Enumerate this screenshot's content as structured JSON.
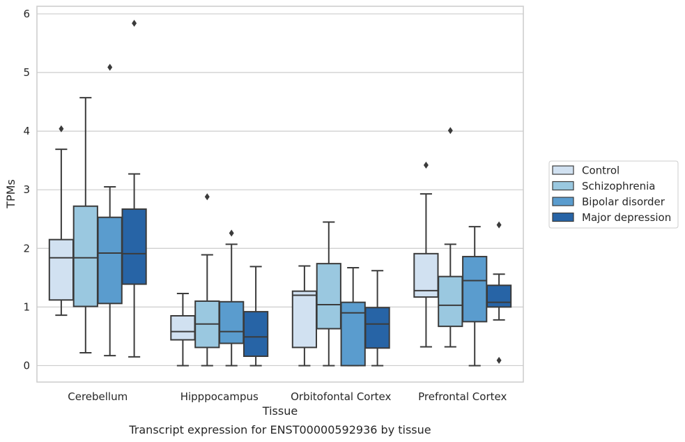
{
  "chart_data": {
    "type": "box",
    "xlabel": "Tissue",
    "ylabel": "TPMs",
    "caption": "Transcript expression for ENST00000592936 by tissue",
    "ylim": [
      -0.28,
      6.13
    ],
    "yticks": [
      0,
      1,
      2,
      3,
      4,
      5,
      6
    ],
    "grid": true,
    "legend_position": "right",
    "categories": [
      "Cerebellum",
      "Hipppocampus",
      "Orbitofontal Cortex",
      "Prefrontal Cortex"
    ],
    "series": [
      {
        "name": "Control",
        "color": "#d1e1f1",
        "boxes": [
          {
            "whislo": 0.86,
            "q1": 1.12,
            "med": 1.84,
            "q3": 2.15,
            "whishi": 3.69,
            "fliers": [
              4.04
            ]
          },
          {
            "whislo": 0.0,
            "q1": 0.44,
            "med": 0.58,
            "q3": 0.85,
            "whishi": 1.23,
            "fliers": []
          },
          {
            "whislo": 0.0,
            "q1": 0.31,
            "med": 1.2,
            "q3": 1.27,
            "whishi": 1.7,
            "fliers": []
          },
          {
            "whislo": 0.32,
            "q1": 1.17,
            "med": 1.28,
            "q3": 1.91,
            "whishi": 2.93,
            "fliers": [
              3.42
            ]
          }
        ]
      },
      {
        "name": "Schizophrenia",
        "color": "#9ac8e0",
        "boxes": [
          {
            "whislo": 0.22,
            "q1": 1.01,
            "med": 1.84,
            "q3": 2.72,
            "whishi": 4.57,
            "fliers": []
          },
          {
            "whislo": 0.0,
            "q1": 0.31,
            "med": 0.71,
            "q3": 1.1,
            "whishi": 1.89,
            "fliers": [
              2.88
            ]
          },
          {
            "whislo": 0.0,
            "q1": 0.63,
            "med": 1.04,
            "q3": 1.74,
            "whishi": 2.45,
            "fliers": []
          },
          {
            "whislo": 0.32,
            "q1": 0.67,
            "med": 1.03,
            "q3": 1.52,
            "whishi": 2.07,
            "fliers": [
              4.01
            ]
          }
        ]
      },
      {
        "name": "Bipolar disorder",
        "color": "#5a9cce",
        "boxes": [
          {
            "whislo": 0.17,
            "q1": 1.06,
            "med": 1.92,
            "q3": 2.53,
            "whishi": 3.05,
            "fliers": [
              5.09
            ]
          },
          {
            "whislo": 0.0,
            "q1": 0.38,
            "med": 0.58,
            "q3": 1.09,
            "whishi": 2.07,
            "fliers": [
              2.26
            ]
          },
          {
            "whislo": 0.0,
            "q1": 0.0,
            "med": 0.9,
            "q3": 1.08,
            "whishi": 1.67,
            "fliers": []
          },
          {
            "whislo": 0.0,
            "q1": 0.75,
            "med": 1.45,
            "q3": 1.86,
            "whishi": 2.37,
            "fliers": []
          }
        ]
      },
      {
        "name": "Major depression",
        "color": "#2764a6",
        "boxes": [
          {
            "whislo": 0.15,
            "q1": 1.39,
            "med": 1.91,
            "q3": 2.67,
            "whishi": 3.27,
            "fliers": [
              5.84
            ]
          },
          {
            "whislo": 0.0,
            "q1": 0.16,
            "med": 0.49,
            "q3": 0.92,
            "whishi": 1.69,
            "fliers": []
          },
          {
            "whislo": 0.0,
            "q1": 0.3,
            "med": 0.71,
            "q3": 0.99,
            "whishi": 1.62,
            "fliers": []
          },
          {
            "whislo": 0.78,
            "q1": 1.0,
            "med": 1.08,
            "q3": 1.37,
            "whishi": 1.56,
            "fliers": [
              0.09,
              2.4
            ]
          }
        ]
      }
    ]
  },
  "style": {
    "grid_color": "#cccccc",
    "spine_color": "#cccccc",
    "line_color": "#3b3b3b"
  }
}
